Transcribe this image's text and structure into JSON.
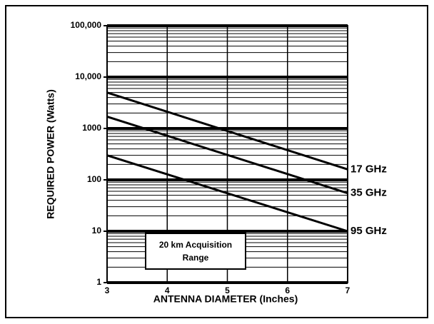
{
  "chart_data": {
    "type": "line",
    "x_label": "ANTENNA DIAMETER (Inches)",
    "y_label": "REQUIRED POWER (Watts)",
    "x": [
      3,
      7
    ],
    "series": [
      {
        "name": "17 GHz",
        "color": "#000000",
        "values": [
          5000,
          160
        ]
      },
      {
        "name": "35 GHz",
        "color": "#000000",
        "values": [
          1700,
          55
        ]
      },
      {
        "name": "95 GHz",
        "color": "#000000",
        "values": [
          300,
          10
        ]
      }
    ],
    "annotation": "20 km Acquisition Range",
    "xlim": [
      3,
      7
    ],
    "xticks": [
      3,
      4,
      5,
      6,
      7
    ],
    "ylim": [
      1,
      100000
    ],
    "yticks": [
      1,
      10,
      100,
      1000,
      {
        "value": 10000,
        "label": "10,000"
      },
      {
        "value": 100000,
        "label": "100,000"
      }
    ],
    "y_log": true,
    "grid": true,
    "minor_grid": true
  }
}
